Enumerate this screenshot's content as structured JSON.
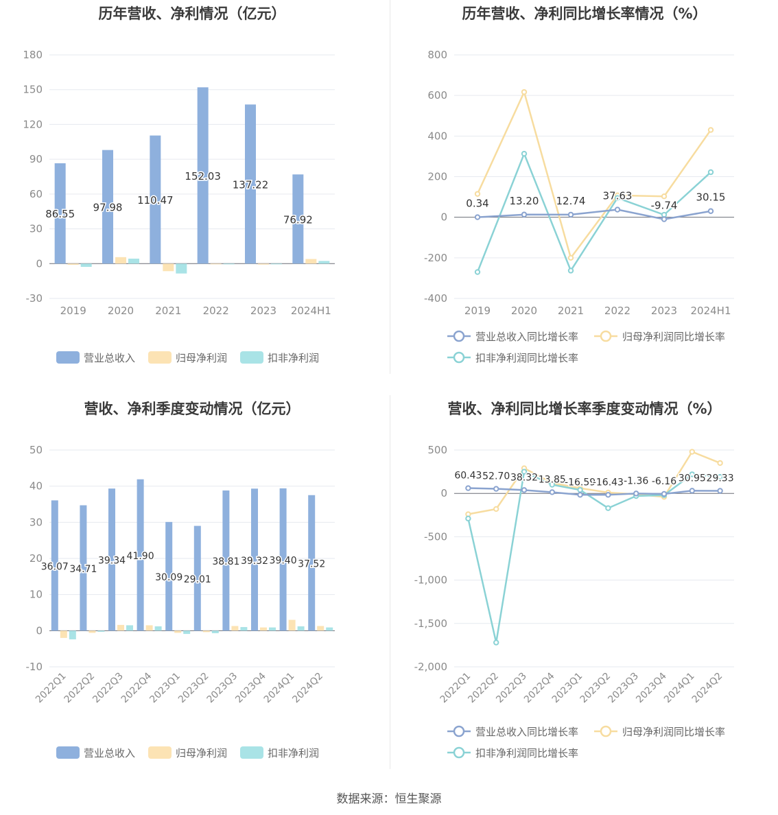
{
  "colors": {
    "revenue": "#8eb0dd",
    "net_profit": "#fce3b4",
    "deducted_profit": "#a9e3e6",
    "revenue_line": "#8aa3cf",
    "net_line": "#f7dc9f",
    "deducted_line": "#8ad2d5",
    "grid": "#e6e9ef",
    "axis_text": "#8a8a8a"
  },
  "source": "数据来源：恒生聚源",
  "chart_data": [
    {
      "id": "annual_amount",
      "type": "bar",
      "title": "历年营收、净利情况（亿元）",
      "categories": [
        "2019",
        "2020",
        "2021",
        "2022",
        "2023",
        "2024H1"
      ],
      "ylim": [
        -30,
        180
      ],
      "yticks": [
        -30,
        0,
        30,
        60,
        90,
        120,
        150,
        180
      ],
      "series": [
        {
          "name": "营业总收入",
          "values": [
            86.55,
            97.98,
            110.47,
            152.03,
            137.22,
            76.92
          ],
          "labels": [
            "86.55",
            "97.98",
            "110.47",
            "152.03",
            "137.22",
            "76.92"
          ]
        },
        {
          "name": "归母净利润",
          "values": [
            -1.0,
            5.6,
            -6.5,
            -0.5,
            -0.8,
            4.0
          ]
        },
        {
          "name": "扣非净利润",
          "values": [
            -2.8,
            4.3,
            -8.5,
            -0.3,
            -0.4,
            2.3
          ]
        }
      ]
    },
    {
      "id": "annual_growth",
      "type": "line",
      "title": "历年营收、净利同比增长率情况（%）",
      "categories": [
        "2019",
        "2020",
        "2021",
        "2022",
        "2023",
        "2024H1"
      ],
      "ylim": [
        -400,
        800
      ],
      "yticks": [
        -400,
        -200,
        0,
        200,
        400,
        600,
        800
      ],
      "series": [
        {
          "name": "营业总收入同比增长率",
          "values": [
            0.34,
            13.2,
            12.74,
            37.63,
            -9.74,
            30.15
          ],
          "labels": [
            "0.34",
            "13.20",
            "12.74",
            "37.63",
            "-9.74",
            "30.15"
          ]
        },
        {
          "name": "归母净利润同比增长率",
          "values": [
            115,
            617,
            -200,
            108,
            103,
            430
          ]
        },
        {
          "name": "扣非净利润同比增长率",
          "values": [
            -270,
            313,
            -263,
            95,
            12,
            222
          ]
        }
      ]
    },
    {
      "id": "quarterly_amount",
      "type": "bar",
      "title": "营收、净利季度变动情况（亿元）",
      "categories": [
        "2022Q1",
        "2022Q2",
        "2022Q3",
        "2022Q4",
        "2023Q1",
        "2023Q2",
        "2023Q3",
        "2023Q4",
        "2024Q1",
        "2024Q2"
      ],
      "ylim": [
        -10,
        50
      ],
      "yticks": [
        -10,
        0,
        10,
        20,
        30,
        40,
        50
      ],
      "series": [
        {
          "name": "营业总收入",
          "values": [
            36.07,
            34.71,
            39.34,
            41.9,
            30.09,
            29.01,
            38.81,
            39.32,
            39.4,
            37.52
          ],
          "labels": [
            "36.07",
            "34.71",
            "39.34",
            "41.90",
            "30.09",
            "29.01",
            "38.81",
            "39.32",
            "39.40",
            "37.52"
          ]
        },
        {
          "name": "归母净利润",
          "values": [
            -2.0,
            -0.6,
            1.6,
            1.5,
            -0.6,
            -0.4,
            1.3,
            0.9,
            3.0,
            1.3
          ]
        },
        {
          "name": "扣非净利润",
          "values": [
            -2.4,
            -0.3,
            1.5,
            1.2,
            -0.9,
            -0.7,
            1.0,
            0.9,
            1.2,
            0.9
          ]
        }
      ]
    },
    {
      "id": "quarterly_growth",
      "type": "line",
      "title": "营收、净利同比增长率季度变动情况（%）",
      "categories": [
        "2022Q1",
        "2022Q2",
        "2022Q3",
        "2022Q4",
        "2023Q1",
        "2023Q2",
        "2023Q3",
        "2023Q4",
        "2024Q1",
        "2024Q2"
      ],
      "ylim": [
        -2000,
        500
      ],
      "yticks": [
        -2000,
        -1500,
        -1000,
        -500,
        0,
        500
      ],
      "yticklabels": [
        "-2,000",
        "-1,500",
        "-1,000",
        "-500",
        "0",
        "500"
      ],
      "series": [
        {
          "name": "营业总收入同比增长率",
          "values": [
            60.43,
            52.7,
            38.32,
            13.85,
            -16.59,
            -16.43,
            -1.36,
            -6.16,
            30.95,
            29.33
          ],
          "labels": [
            "60.43",
            "52.70",
            "38.32",
            "13.85",
            "-16.59",
            "-16.43",
            "-1.36",
            "-6.16",
            "30.95",
            "29.33"
          ]
        },
        {
          "name": "归母净利润同比增长率",
          "values": [
            -240,
            -180,
            290,
            120,
            60,
            10,
            -10,
            -40,
            480,
            350
          ]
        },
        {
          "name": "扣非净利润同比增长率",
          "values": [
            -290,
            -1720,
            250,
            100,
            40,
            -170,
            -30,
            -20,
            220,
            190
          ]
        }
      ]
    }
  ]
}
